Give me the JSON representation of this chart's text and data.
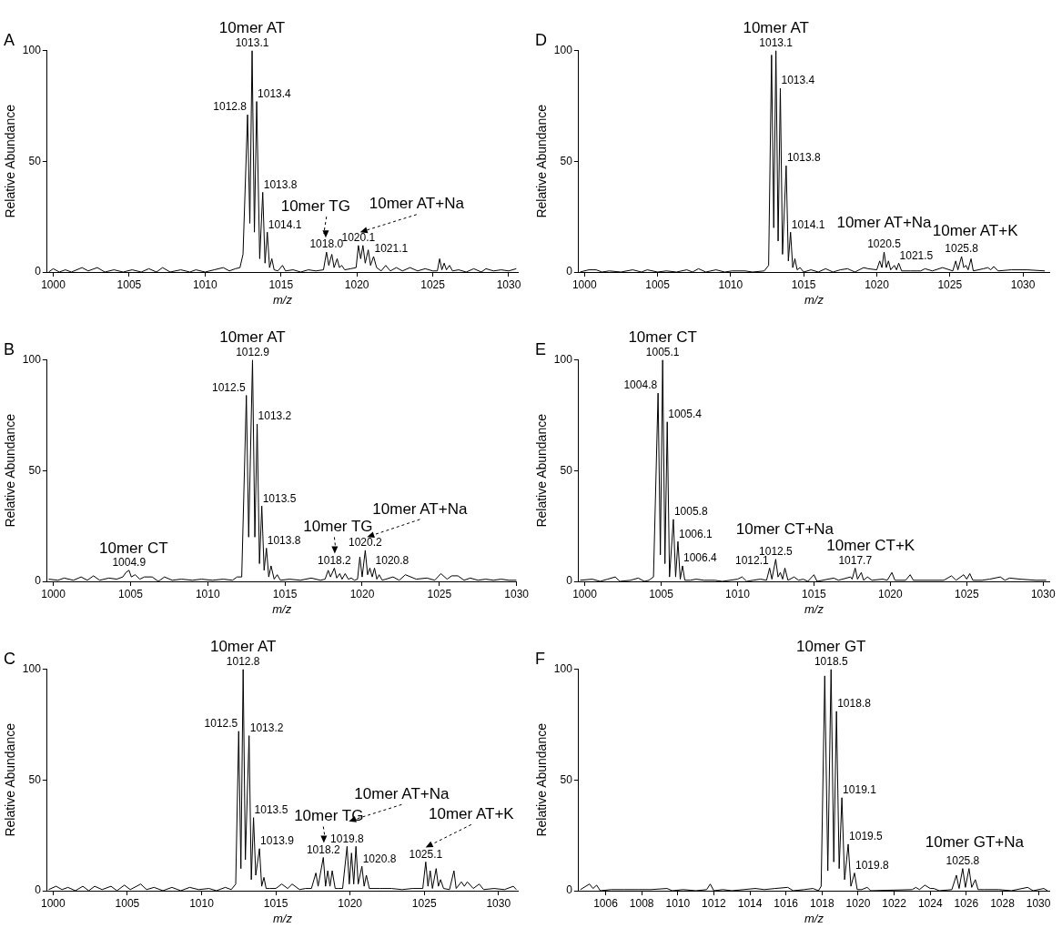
{
  "chart_data": [
    {
      "type": "line",
      "title": "A",
      "xlabel": "m/z",
      "ylabel": "Relative Abundance",
      "xlim": [
        999.6,
        1030.6
      ],
      "xticks": [
        1000,
        1005,
        1010,
        1015,
        1020,
        1025,
        1030
      ],
      "ylim": [
        0,
        100
      ],
      "yticks": [
        0,
        50,
        100
      ],
      "marker": "none",
      "series": [
        {
          "color": "#000000",
          "x": [
            999.7,
            1000,
            1000.4,
            1000.8,
            1001.2,
            1001.9,
            1002.3,
            1002.9,
            1003.4,
            1004,
            1004.6,
            1005.2,
            1005.8,
            1006.3,
            1006.8,
            1007.2,
            1007.7,
            1008.4,
            1009,
            1009.4,
            1010,
            1010.6,
            1011.2,
            1011.6,
            1012,
            1012.3,
            1012.5,
            1012.8,
            1012.95,
            1013.1,
            1013.25,
            1013.4,
            1013.6,
            1013.8,
            1013.95,
            1014.1,
            1014.25,
            1014.4,
            1014.55,
            1014.8,
            1015.1,
            1015.3,
            1015.8,
            1016.3,
            1016.8,
            1017.3,
            1017.8,
            1018.0,
            1018.15,
            1018.35,
            1018.5,
            1018.7,
            1018.85,
            1019.0,
            1019.2,
            1019.6,
            1019.95,
            1020.1,
            1020.25,
            1020.4,
            1020.55,
            1020.75,
            1020.9,
            1021.1,
            1021.3,
            1021.6,
            1021.9,
            1022.2,
            1022.6,
            1023,
            1023.5,
            1024,
            1024.5,
            1025,
            1025.3,
            1025.45,
            1025.6,
            1025.75,
            1025.9,
            1026.1,
            1026.3,
            1026.7,
            1027.2,
            1027.7,
            1028.2,
            1028.5,
            1029,
            1029.5,
            1030,
            1030.5
          ],
          "values": [
            0,
            1.5,
            0,
            1,
            0,
            2,
            0.5,
            2,
            0,
            1,
            0,
            1,
            0,
            1.5,
            0,
            2,
            0,
            1,
            0,
            1,
            0,
            1,
            2,
            0.5,
            1.5,
            2,
            8,
            71,
            22,
            100,
            18,
            77,
            6,
            36,
            4,
            18,
            2,
            6,
            1,
            0.5,
            3,
            0.5,
            1,
            0,
            1,
            0.5,
            1,
            9,
            3,
            8,
            2,
            6,
            2,
            3,
            1,
            1.5,
            2,
            12,
            6,
            12,
            4,
            10,
            3,
            7,
            2,
            0.5,
            3,
            0.5,
            2,
            0.5,
            2,
            0.5,
            1.5,
            0.5,
            0.5,
            6,
            1,
            4,
            1,
            3,
            0.5,
            1,
            0,
            1.5,
            0,
            1.5,
            0.5,
            1,
            0.5,
            1.5
          ]
        }
      ],
      "annotations": [
        {
          "text": "10mer AT",
          "x": 1013.1,
          "y": 100
        },
        {
          "text": "1013.1",
          "x": 1013.1,
          "y": 100
        },
        {
          "text": "1012.8",
          "x": 1012.8,
          "y": 71
        },
        {
          "text": "1013.4",
          "x": 1013.4,
          "y": 77
        },
        {
          "text": "1013.8",
          "x": 1013.8,
          "y": 36
        },
        {
          "text": "1014.1",
          "x": 1014.1,
          "y": 18
        },
        {
          "text": "1018.0",
          "x": 1018.0,
          "y": 9
        },
        {
          "text": "1020.1",
          "x": 1020.1,
          "y": 12
        },
        {
          "text": "1021.1",
          "x": 1021.1,
          "y": 7
        },
        {
          "text": "10mer TG",
          "x": 1018.0,
          "y": 9
        },
        {
          "text": "10mer AT+Na",
          "x": 1020.1,
          "y": 12
        }
      ]
    },
    {
      "type": "line",
      "title": "B",
      "xlabel": "m/z",
      "ylabel": "Relative Abundance",
      "xlim": [
        999.6,
        1030
      ],
      "xticks": [
        1000,
        1005,
        1010,
        1015,
        1020,
        1025,
        1030
      ],
      "ylim": [
        0,
        100
      ],
      "yticks": [
        0,
        50,
        100
      ],
      "marker": "none",
      "series": [
        {
          "color": "#000000",
          "x": [
            999.7,
            1000.3,
            1000.7,
            1001.3,
            1001.8,
            1002.2,
            1002.6,
            1003,
            1003.6,
            1004.1,
            1004.5,
            1004.7,
            1004.9,
            1005.05,
            1005.3,
            1005.6,
            1005.9,
            1006.4,
            1006.8,
            1007.2,
            1007.7,
            1008.3,
            1009,
            1009.6,
            1010.3,
            1011,
            1011.6,
            1011.9,
            1012.2,
            1012.5,
            1012.65,
            1012.9,
            1013.05,
            1013.2,
            1013.35,
            1013.5,
            1013.65,
            1013.8,
            1013.95,
            1014.1,
            1014.3,
            1014.5,
            1014.7,
            1015.3,
            1016,
            1016.7,
            1017.3,
            1017.6,
            1017.8,
            1017.95,
            1018.2,
            1018.35,
            1018.55,
            1018.7,
            1018.9,
            1019.1,
            1019.3,
            1019.5,
            1019.7,
            1019.85,
            1020.0,
            1020.2,
            1020.35,
            1020.5,
            1020.65,
            1020.8,
            1020.95,
            1021.1,
            1021.3,
            1022,
            1022.4,
            1022.8,
            1023.5,
            1024.2,
            1024.7,
            1025.1,
            1025.5,
            1025.8,
            1026.2,
            1026.6,
            1027,
            1027.5,
            1028,
            1028.5,
            1029,
            1029.5,
            1030
          ],
          "values": [
            1,
            0.5,
            1.5,
            0.5,
            2,
            0.5,
            2.5,
            0.5,
            1.5,
            1,
            2,
            4,
            5,
            2,
            3,
            1,
            2,
            2,
            0,
            2,
            0.5,
            1,
            0.5,
            1,
            0.5,
            1,
            0.5,
            2,
            2,
            84,
            20,
            100,
            20,
            71,
            8,
            34,
            5,
            15,
            2,
            7,
            1,
            3,
            0.5,
            1,
            0.5,
            1.5,
            0.5,
            1,
            5,
            2,
            6,
            1.5,
            3.5,
            1,
            3.5,
            1,
            1.5,
            0.5,
            1,
            11,
            2,
            14,
            3,
            6,
            2,
            6,
            1,
            3,
            0.5,
            2,
            0.5,
            3,
            1,
            1.5,
            0.5,
            3.5,
            1,
            2.5,
            2.5,
            0.5,
            1.5,
            0.5,
            1,
            0.5,
            1,
            0.5,
            0.5
          ]
        }
      ],
      "annotations": [
        {
          "text": "10mer AT",
          "x": 1012.9,
          "y": 100
        },
        {
          "text": "1012.9",
          "x": 1012.9,
          "y": 100
        },
        {
          "text": "1012.5",
          "x": 1012.5,
          "y": 84
        },
        {
          "text": "1013.2",
          "x": 1013.2,
          "y": 71
        },
        {
          "text": "1013.5",
          "x": 1013.5,
          "y": 34
        },
        {
          "text": "1013.8",
          "x": 1013.8,
          "y": 15
        },
        {
          "text": "10mer CT",
          "x": 1004.9,
          "y": 5
        },
        {
          "text": "1004.9",
          "x": 1004.9,
          "y": 5
        },
        {
          "text": "1018.2",
          "x": 1018.2,
          "y": 6
        },
        {
          "text": "1020.2",
          "x": 1020.2,
          "y": 14
        },
        {
          "text": "1020.8",
          "x": 1020.8,
          "y": 6
        },
        {
          "text": "10mer TG",
          "x": 1018.2,
          "y": 6
        },
        {
          "text": "10mer AT+Na",
          "x": 1020.2,
          "y": 14
        }
      ]
    },
    {
      "type": "line",
      "title": "C",
      "xlabel": "m/z",
      "ylabel": "Relative Abundance",
      "xlim": [
        999.6,
        1031.3
      ],
      "xticks": [
        1000,
        1005,
        1010,
        1015,
        1020,
        1025,
        1030
      ],
      "ylim": [
        0,
        100
      ],
      "yticks": [
        0,
        50,
        100
      ],
      "marker": "none",
      "series": [
        {
          "color": "#000000",
          "x": [
            999.7,
            1000.2,
            1000.6,
            1001,
            1001.5,
            1002,
            1002.4,
            1002.8,
            1003.3,
            1003.9,
            1004.3,
            1004.8,
            1005.2,
            1005.9,
            1006.3,
            1006.8,
            1007.4,
            1008,
            1008.6,
            1009.2,
            1009.8,
            1010.5,
            1011,
            1011.6,
            1012,
            1012.3,
            1012.5,
            1012.65,
            1012.8,
            1012.95,
            1013.2,
            1013.35,
            1013.5,
            1013.65,
            1013.9,
            1014.05,
            1014.2,
            1014.35,
            1014.6,
            1015,
            1015.4,
            1015.8,
            1016.1,
            1016.6,
            1017,
            1017.4,
            1017.7,
            1017.85,
            1018.2,
            1018.35,
            1018.5,
            1018.65,
            1018.8,
            1019,
            1019.2,
            1019.5,
            1019.8,
            1019.95,
            1020.1,
            1020.25,
            1020.4,
            1020.55,
            1020.8,
            1020.95,
            1021.1,
            1021.3,
            1022,
            1022.8,
            1023.5,
            1024.2,
            1024.9,
            1025.1,
            1025.25,
            1025.4,
            1025.55,
            1025.8,
            1025.95,
            1026.1,
            1026.3,
            1026.7,
            1027,
            1027.15,
            1027.5,
            1027.7,
            1027.9,
            1028.3,
            1028.7,
            1029,
            1029.7,
            1030.4,
            1031,
            1031.2
          ],
          "values": [
            0.5,
            2,
            0.5,
            1.5,
            0,
            2,
            0,
            2,
            0.5,
            2,
            0,
            2.5,
            0.5,
            3,
            0.5,
            1.5,
            0,
            1.5,
            0,
            1.5,
            0.5,
            1,
            0,
            1.5,
            0.5,
            3,
            72,
            10,
            100,
            14,
            70,
            5,
            33,
            7,
            19,
            2,
            6,
            1,
            1,
            1,
            3,
            1,
            3,
            0.5,
            1,
            1,
            8,
            2,
            15,
            2,
            9,
            2,
            9,
            1,
            1,
            1,
            20,
            3,
            17,
            3,
            20,
            3,
            11,
            2,
            7,
            1,
            1,
            1,
            0.5,
            1,
            1,
            13,
            2,
            9,
            1,
            10,
            2,
            5,
            1,
            0.5,
            9,
            1,
            4,
            2,
            4,
            1,
            3,
            0.5,
            1,
            0.5,
            2,
            0.5
          ]
        }
      ],
      "annotations": [
        {
          "text": "10mer AT",
          "x": 1012.8,
          "y": 100
        },
        {
          "text": "1012.8",
          "x": 1012.8,
          "y": 100
        },
        {
          "text": "1012.5",
          "x": 1012.5,
          "y": 72
        },
        {
          "text": "1013.2",
          "x": 1013.2,
          "y": 70
        },
        {
          "text": "1013.5",
          "x": 1013.5,
          "y": 33
        },
        {
          "text": "1013.9",
          "x": 1013.9,
          "y": 19
        },
        {
          "text": "1018.2",
          "x": 1018.2,
          "y": 15
        },
        {
          "text": "1019.8",
          "x": 1019.8,
          "y": 20
        },
        {
          "text": "1020.8",
          "x": 1020.8,
          "y": 11
        },
        {
          "text": "1025.1",
          "x": 1025.1,
          "y": 13
        },
        {
          "text": "10mer TG",
          "x": 1018.2,
          "y": 15
        },
        {
          "text": "10mer AT+Na",
          "x": 1019.8,
          "y": 20
        },
        {
          "text": "10mer AT+K",
          "x": 1025.1,
          "y": 13
        }
      ]
    },
    {
      "type": "line",
      "title": "D",
      "xlabel": "m/z",
      "ylabel": "Relative Abundance",
      "xlim": [
        999.6,
        1031.8
      ],
      "xticks": [
        1000,
        1005,
        1010,
        1015,
        1020,
        1025,
        1030
      ],
      "ylim": [
        0,
        100
      ],
      "yticks": [
        0,
        50,
        100
      ],
      "marker": "none",
      "series": [
        {
          "color": "#000000",
          "x": [
            999.7,
            1000.3,
            1000.8,
            1001.2,
            1001.7,
            1002.5,
            1003.3,
            1003.9,
            1004.3,
            1005,
            1005.6,
            1006.3,
            1007,
            1007.4,
            1007.8,
            1008.3,
            1009,
            1009.6,
            1010.1,
            1011,
            1011.5,
            1012.3,
            1012.6,
            1012.8,
            1012.95,
            1013.1,
            1013.25,
            1013.4,
            1013.55,
            1013.8,
            1013.95,
            1014.1,
            1014.25,
            1014.4,
            1014.55,
            1014.75,
            1015,
            1015.5,
            1016,
            1016.5,
            1017,
            1017.5,
            1018,
            1018.5,
            1019.1,
            1019.4,
            1020,
            1020.2,
            1020.35,
            1020.5,
            1020.65,
            1020.8,
            1020.95,
            1021.2,
            1021.35,
            1021.5,
            1021.7,
            1022.3,
            1023,
            1023.3,
            1023.8,
            1024.5,
            1025.2,
            1025.4,
            1025.55,
            1025.8,
            1025.95,
            1026.1,
            1026.25,
            1026.45,
            1026.6,
            1027.3,
            1027.6,
            1027.8,
            1028,
            1028.3,
            1029.2,
            1030.3,
            1031.5
          ],
          "values": [
            0,
            1,
            1,
            0,
            0.5,
            0,
            1,
            0,
            1,
            0,
            0.5,
            0,
            1,
            0,
            1.5,
            0,
            1,
            0,
            0.5,
            0.5,
            0,
            0.5,
            3,
            98,
            20,
            100,
            14,
            83,
            8,
            48,
            5,
            18,
            2,
            6,
            1,
            2,
            0,
            1,
            0,
            1.5,
            0,
            1,
            1.5,
            0,
            2,
            1.5,
            1,
            5,
            2,
            9,
            2,
            5,
            1,
            3,
            1,
            4,
            0.5,
            0.5,
            0.5,
            1.5,
            0.5,
            2,
            0.5,
            5,
            1,
            7,
            2,
            3,
            1,
            6,
            0.5,
            1.5,
            2,
            1,
            2.5,
            0.5,
            1,
            1,
            0.5
          ]
        }
      ],
      "annotations": [
        {
          "text": "10mer AT",
          "x": 1013.1,
          "y": 100
        },
        {
          "text": "1013.1",
          "x": 1013.1,
          "y": 100
        },
        {
          "text": "1013.4",
          "x": 1013.4,
          "y": 83
        },
        {
          "text": "1013.8",
          "x": 1013.8,
          "y": 48
        },
        {
          "text": "1014.1",
          "x": 1014.1,
          "y": 18
        },
        {
          "text": "1020.5",
          "x": 1020.5,
          "y": 9
        },
        {
          "text": "1021.5",
          "x": 1021.5,
          "y": 4
        },
        {
          "text": "1025.8",
          "x": 1025.8,
          "y": 7
        },
        {
          "text": "10mer AT+Na",
          "x": 1020.5,
          "y": 9
        },
        {
          "text": "10mer AT+K",
          "x": 1025.8,
          "y": 7
        }
      ]
    },
    {
      "type": "line",
      "title": "E",
      "xlabel": "m/z",
      "ylabel": "Relative Abundance",
      "xlim": [
        999.6,
        1030.4
      ],
      "xticks": [
        1000,
        1005,
        1010,
        1015,
        1020,
        1025,
        1030
      ],
      "ylim": [
        0,
        100
      ],
      "yticks": [
        0,
        50,
        100
      ],
      "marker": "none",
      "series": [
        {
          "color": "#000000",
          "x": [
            999.7,
            1000.5,
            1001,
            1001.5,
            1002,
            1002.3,
            1003,
            1003.5,
            1003.9,
            1004.2,
            1004.5,
            1004.8,
            1004.95,
            1005.1,
            1005.25,
            1005.4,
            1005.55,
            1005.8,
            1005.95,
            1006.1,
            1006.25,
            1006.4,
            1006.55,
            1006.9,
            1007.3,
            1007.8,
            1008.5,
            1009,
            1009.5,
            1010,
            1010.3,
            1010.6,
            1011,
            1011.5,
            1011.9,
            1012.1,
            1012.25,
            1012.5,
            1012.65,
            1012.8,
            1012.95,
            1013.1,
            1013.3,
            1013.7,
            1014,
            1014.3,
            1014.6,
            1015,
            1015.2,
            1016.3,
            1016.6,
            1017.4,
            1017.5,
            1017.7,
            1017.85,
            1018.1,
            1018.25,
            1018.5,
            1018.8,
            1019.5,
            1019.8,
            1020.1,
            1020.3,
            1021,
            1021.3,
            1021.5,
            1022.3,
            1023.5,
            1024,
            1024.3,
            1024.8,
            1025,
            1025.2,
            1025.4,
            1026,
            1026.5,
            1027.2,
            1027.5,
            1027.8,
            1028.5,
            1029.5,
            1030.2
          ],
          "values": [
            0.5,
            1,
            0,
            1,
            2,
            0,
            0.5,
            1.5,
            0,
            0.5,
            2,
            85,
            12,
            100,
            8,
            72,
            2,
            28,
            2,
            18,
            1,
            7,
            0.5,
            0.5,
            1,
            0.5,
            0.5,
            0,
            0.5,
            1,
            2,
            0,
            0.5,
            1,
            0.5,
            6,
            1,
            10,
            2,
            4,
            1,
            6,
            0.5,
            2,
            0.5,
            1,
            0,
            3,
            0,
            1.5,
            0.5,
            2,
            1,
            6,
            1,
            4,
            0.5,
            2,
            0.5,
            1,
            0.5,
            4,
            0.5,
            0.5,
            3,
            0.5,
            0.5,
            0.5,
            2.5,
            0.5,
            3,
            1,
            3.5,
            0.5,
            0.5,
            1,
            2,
            0.5,
            1.5,
            1,
            0.5,
            0.5
          ]
        }
      ],
      "annotations": [
        {
          "text": "10mer CT",
          "x": 1005.1,
          "y": 100
        },
        {
          "text": "1005.1",
          "x": 1005.1,
          "y": 100
        },
        {
          "text": "1004.8",
          "x": 1004.8,
          "y": 85
        },
        {
          "text": "1005.4",
          "x": 1005.4,
          "y": 72
        },
        {
          "text": "1005.8",
          "x": 1005.8,
          "y": 28
        },
        {
          "text": "1006.1",
          "x": 1006.1,
          "y": 18
        },
        {
          "text": "1006.4",
          "x": 1006.4,
          "y": 7
        },
        {
          "text": "1012.1",
          "x": 1012.1,
          "y": 6
        },
        {
          "text": "1012.5",
          "x": 1012.5,
          "y": 10
        },
        {
          "text": "1017.7",
          "x": 1017.7,
          "y": 6
        },
        {
          "text": "10mer CT+Na",
          "x": 1012.5,
          "y": 10
        },
        {
          "text": "10mer CT+K",
          "x": 1017.7,
          "y": 6
        }
      ]
    },
    {
      "type": "line",
      "title": "F",
      "xlabel": "m/z",
      "ylabel": "Relative Abundance",
      "xlim": [
        1004.5,
        1030.6
      ],
      "xticks": [
        1006,
        1008,
        1010,
        1012,
        1014,
        1016,
        1018,
        1020,
        1022,
        1024,
        1026,
        1028,
        1030
      ],
      "ylim": [
        0,
        100
      ],
      "yticks": [
        0,
        50,
        100
      ],
      "marker": "none",
      "series": [
        {
          "color": "#000000",
          "x": [
            1004.6,
            1005.1,
            1005.3,
            1005.5,
            1005.7,
            1006.3,
            1007,
            1007.8,
            1008.5,
            1009.4,
            1009.7,
            1010.3,
            1011,
            1011.6,
            1011.8,
            1012,
            1012.5,
            1013,
            1014.3,
            1014.8,
            1015.4,
            1016.1,
            1016.4,
            1017,
            1017.5,
            1017.8,
            1017.95,
            1018.15,
            1018.32,
            1018.5,
            1018.65,
            1018.8,
            1018.95,
            1019.1,
            1019.25,
            1019.45,
            1019.6,
            1019.8,
            1019.95,
            1020.2,
            1020.5,
            1020.7,
            1023,
            1023.2,
            1023.4,
            1023.7,
            1024,
            1024.2,
            1024.5,
            1025.2,
            1025.45,
            1025.6,
            1025.8,
            1025.95,
            1026.15,
            1026.3,
            1026.5,
            1026.65,
            1027,
            1027.8,
            1028.5,
            1029.4,
            1029.7,
            1030.3,
            1030.5
          ],
          "values": [
            0.5,
            3,
            1,
            2.5,
            0,
            0.5,
            0.5,
            0.5,
            0.5,
            1,
            0,
            0.5,
            0,
            0.5,
            3,
            0,
            0.5,
            0,
            1,
            0.5,
            1,
            1.5,
            0,
            0.5,
            1,
            0,
            2,
            97,
            9,
            100,
            13,
            81,
            10,
            42,
            5,
            21,
            2,
            8,
            0.5,
            0.5,
            1.5,
            0,
            0.5,
            1.5,
            0.5,
            2.5,
            1,
            1,
            0,
            0.5,
            7,
            1,
            10,
            1.5,
            10,
            1.5,
            5,
            0.5,
            0.5,
            0.5,
            0,
            1.5,
            0,
            1,
            0
          ]
        }
      ],
      "annotations": [
        {
          "text": "10mer GT",
          "x": 1018.5,
          "y": 100
        },
        {
          "text": "1018.5",
          "x": 1018.5,
          "y": 100
        },
        {
          "text": "1018.8",
          "x": 1018.8,
          "y": 81
        },
        {
          "text": "1019.1",
          "x": 1019.1,
          "y": 42
        },
        {
          "text": "1019.5",
          "x": 1019.45,
          "y": 21
        },
        {
          "text": "1019.8",
          "x": 1019.8,
          "y": 8
        },
        {
          "text": "1025.8",
          "x": 1025.8,
          "y": 10
        },
        {
          "text": "10mer GT+Na",
          "x": 1025.8,
          "y": 10
        }
      ]
    }
  ]
}
